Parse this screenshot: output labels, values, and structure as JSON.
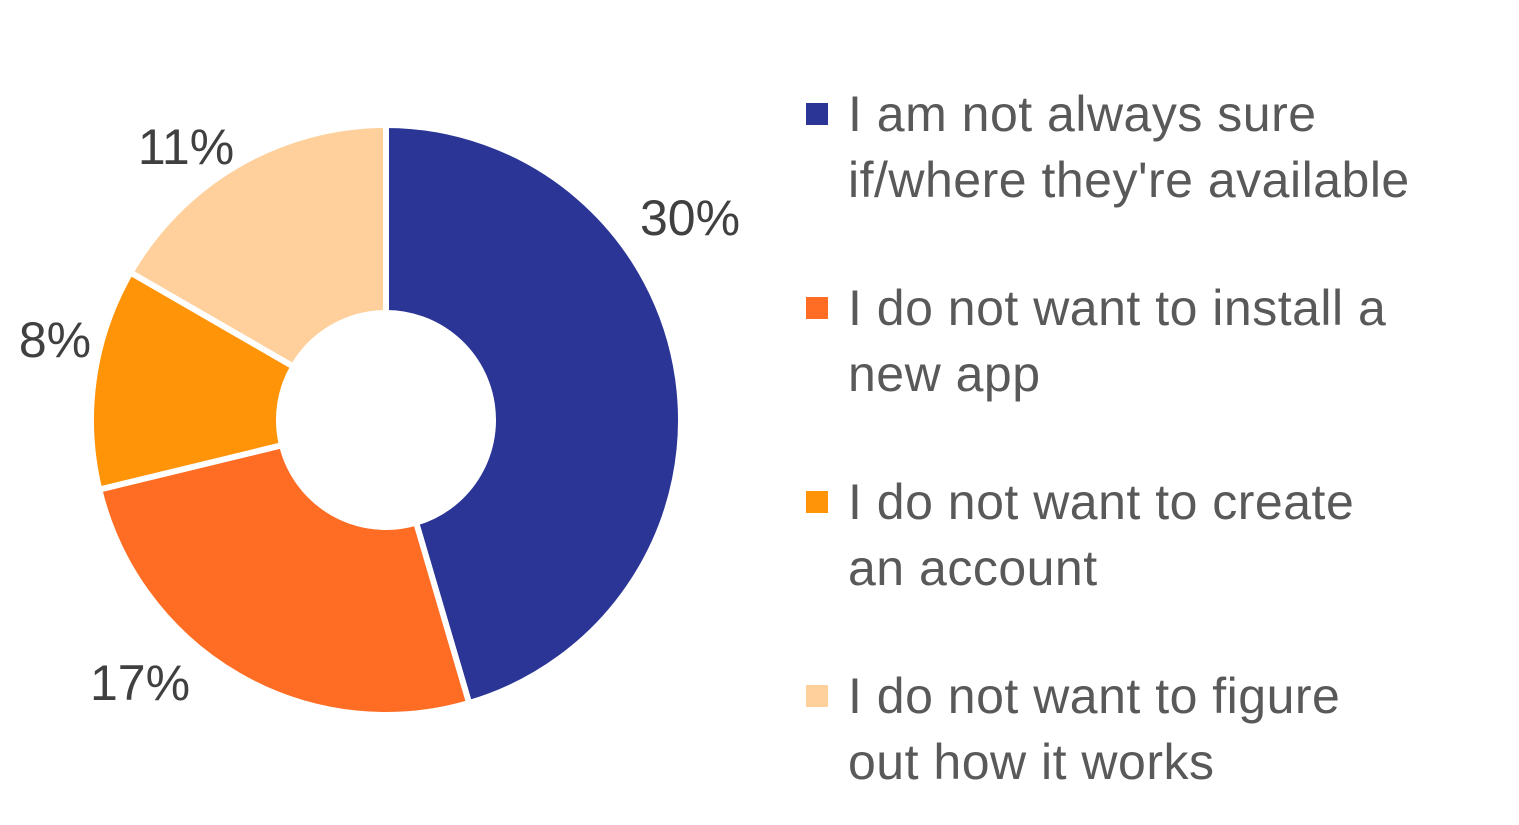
{
  "chart_data": {
    "type": "pie",
    "donut": true,
    "categories": [
      "I am not always sure if/where they're available",
      "I do not want to install a new app",
      "I do not want to create an account",
      "I do not want to figure out how it works"
    ],
    "values": [
      30,
      17,
      8,
      11
    ],
    "value_labels": [
      "30%",
      "17%",
      "8%",
      "11%"
    ],
    "colors": [
      "#2b3596",
      "#ff6d24",
      "#ff9408",
      "#ffd09b"
    ],
    "legend": {
      "placement": "right",
      "entries": [
        {
          "line1": "I am not always sure",
          "line2": "if/where they're available",
          "color": "#2b3596"
        },
        {
          "line1": "I do not want to install a",
          "line2": "new app",
          "color": "#ff6d24"
        },
        {
          "line1": "I do not want to create",
          "line2": "an account",
          "color": "#ff9408"
        },
        {
          "line1": "I do not want to figure",
          "line2": "out how it works",
          "color": "#ffd09b"
        }
      ]
    }
  }
}
